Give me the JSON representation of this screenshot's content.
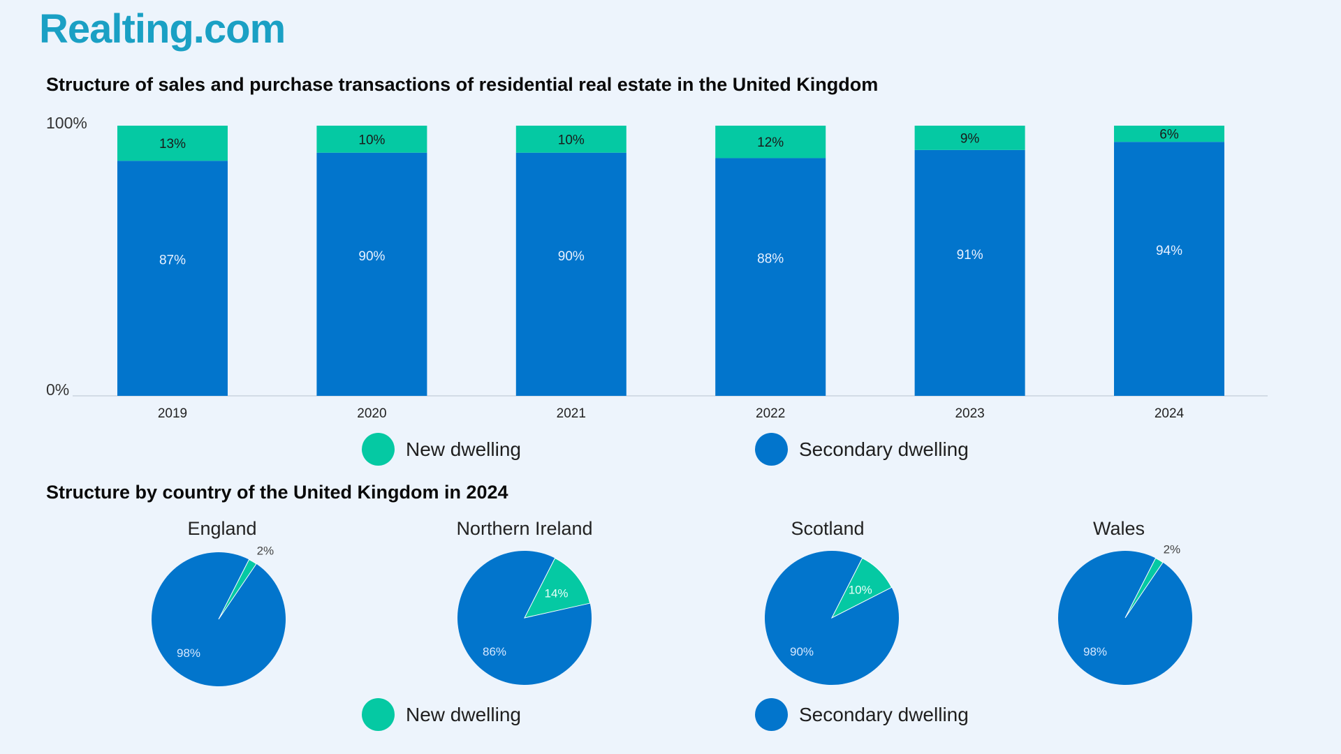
{
  "brand": {
    "logo_text": "Realting.com"
  },
  "colors": {
    "new": "#05c9a3",
    "secondary": "#0275cc",
    "background": "#edf4fc"
  },
  "legend": {
    "new_label": "New dwelling",
    "secondary_label": "Secondary dwelling"
  },
  "chart_data": [
    {
      "type": "bar",
      "stacked": true,
      "title": "Structure of sales and purchase transactions of residential real estate in the United Kingdom",
      "categories": [
        "2019",
        "2020",
        "2021",
        "2022",
        "2023",
        "2024"
      ],
      "series": [
        {
          "name": "Secondary dwelling",
          "values": [
            87,
            90,
            90,
            88,
            91,
            94
          ],
          "labels": [
            "87%",
            "90%",
            "90%",
            "88%",
            "91%",
            "94%"
          ]
        },
        {
          "name": "New dwelling",
          "values": [
            13,
            10,
            10,
            12,
            9,
            6
          ],
          "labels": [
            "13%",
            "10%",
            "10%",
            "12%",
            "9%",
            "6%"
          ]
        }
      ],
      "ylim": [
        0,
        100
      ],
      "y_ticks": [
        "0%",
        "100%"
      ],
      "legend_position": "bottom",
      "grid": false
    },
    {
      "type": "pie",
      "title": "Structure by country of the United Kingdom in 2024",
      "pies": [
        {
          "name": "England",
          "new": 2,
          "secondary": 98,
          "new_label": "2%",
          "secondary_label": "98%"
        },
        {
          "name": "Northern Ireland",
          "new": 14,
          "secondary": 86,
          "new_label": "14%",
          "secondary_label": "86%"
        },
        {
          "name": "Scotland",
          "new": 10,
          "secondary": 90,
          "new_label": "10%",
          "secondary_label": "90%"
        },
        {
          "name": "Wales",
          "new": 2,
          "secondary": 98,
          "new_label": "2%",
          "secondary_label": "98%"
        }
      ],
      "legend_position": "bottom"
    }
  ]
}
